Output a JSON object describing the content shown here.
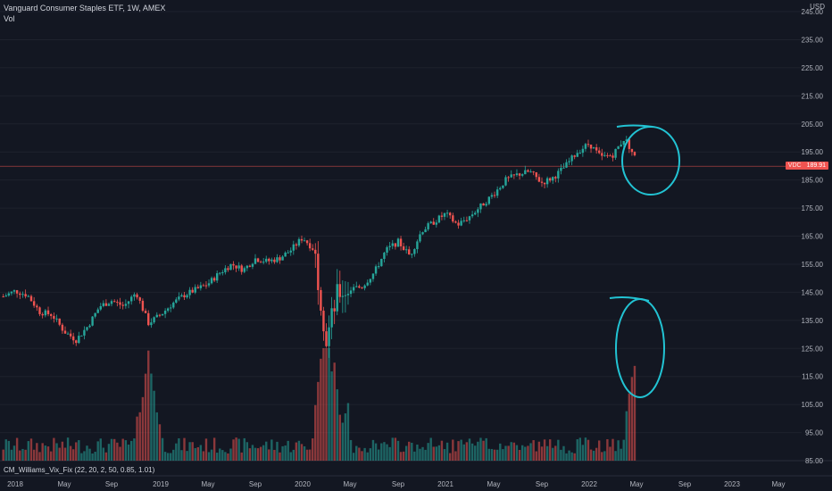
{
  "header": {
    "title": "Vanguard Consumer Staples ETF, 1W, AMEX",
    "volume_label": "Vol"
  },
  "indicator": {
    "label": "CM_Williams_Vix_Fix (22, 20, 2, 50, 0.85, 1.01)"
  },
  "price_axis": {
    "currency": "USD",
    "last_price_symbol": "VDC",
    "last_price": "189.91"
  },
  "colors": {
    "background": "#131722",
    "up": "#26a69a",
    "down": "#ef5350",
    "annotation": "#22c3d3",
    "grid": "#1e222d",
    "axis_text": "#b2b5be",
    "last_price_line": "#ef5350"
  },
  "chart_data": {
    "type": "candlestick",
    "title": "Vanguard Consumer Staples ETF, 1W, AMEX",
    "timeframe": "1W",
    "ylim": [
      84,
      248
    ],
    "y_ticks": [
      85,
      95,
      105,
      115,
      125,
      135,
      145,
      155,
      165,
      175,
      185,
      195,
      205,
      215,
      225,
      235,
      245
    ],
    "x_ticks": [
      "2018",
      "May",
      "Sep",
      "2019",
      "May",
      "Sep",
      "2020",
      "May",
      "Sep",
      "2021",
      "May",
      "Sep",
      "2022",
      "May",
      "Sep",
      "2023",
      "May"
    ],
    "x_tick_dates": [
      "2018-01",
      "2018-05",
      "2018-09",
      "2019-01",
      "2019-05",
      "2019-09",
      "2020-01",
      "2020-05",
      "2020-09",
      "2021-01",
      "2021-05",
      "2021-09",
      "2022-01",
      "2022-05",
      "2022-09",
      "2023-01",
      "2023-05"
    ],
    "price_path": [
      [
        "2017-12",
        143.5
      ],
      [
        "2018-01",
        145.5
      ],
      [
        "2018-02",
        144
      ],
      [
        "2018-03",
        138
      ],
      [
        "2018-04",
        137
      ],
      [
        "2018-05",
        131
      ],
      [
        "2018-06",
        128
      ],
      [
        "2018-07",
        133
      ],
      [
        "2018-08",
        140
      ],
      [
        "2018-09",
        142
      ],
      [
        "2018-10",
        140
      ],
      [
        "2018-11",
        145
      ],
      [
        "2018-12",
        134
      ],
      [
        "2019-01",
        137
      ],
      [
        "2019-02",
        141
      ],
      [
        "2019-03",
        144
      ],
      [
        "2019-04",
        146
      ],
      [
        "2019-05",
        148
      ],
      [
        "2019-06",
        152
      ],
      [
        "2019-07",
        155
      ],
      [
        "2019-08",
        153
      ],
      [
        "2019-09",
        157
      ],
      [
        "2019-10",
        156
      ],
      [
        "2019-11",
        157
      ],
      [
        "2019-12",
        160
      ],
      [
        "2020-01",
        164.5
      ],
      [
        "2020-02",
        160
      ],
      [
        "2020-03",
        128
      ],
      [
        "2020-04",
        145
      ],
      [
        "2020-05",
        146
      ],
      [
        "2020-06",
        147
      ],
      [
        "2020-07",
        152
      ],
      [
        "2020-08",
        160
      ],
      [
        "2020-09",
        163
      ],
      [
        "2020-10",
        158
      ],
      [
        "2020-11",
        167
      ],
      [
        "2020-12",
        170
      ],
      [
        "2021-01",
        173
      ],
      [
        "2021-02",
        169
      ],
      [
        "2021-03",
        172
      ],
      [
        "2021-04",
        176
      ],
      [
        "2021-05",
        180
      ],
      [
        "2021-06",
        185
      ],
      [
        "2021-07",
        187
      ],
      [
        "2021-08",
        188
      ],
      [
        "2021-09",
        184
      ],
      [
        "2021-10",
        186
      ],
      [
        "2021-11",
        190
      ],
      [
        "2021-12",
        195
      ],
      [
        "2022-01",
        198
      ],
      [
        "2022-02",
        193
      ],
      [
        "2022-03",
        194
      ],
      [
        "2022-04",
        200
      ],
      [
        "2022-05",
        192
      ]
    ],
    "last_price": 189.91,
    "volume_peaks": [
      "2018-12",
      "2020-03",
      "2022-05"
    ],
    "annotations": [
      "circle around 2022 price top",
      "circle around 2022 Vix Fix volume spike"
    ]
  }
}
